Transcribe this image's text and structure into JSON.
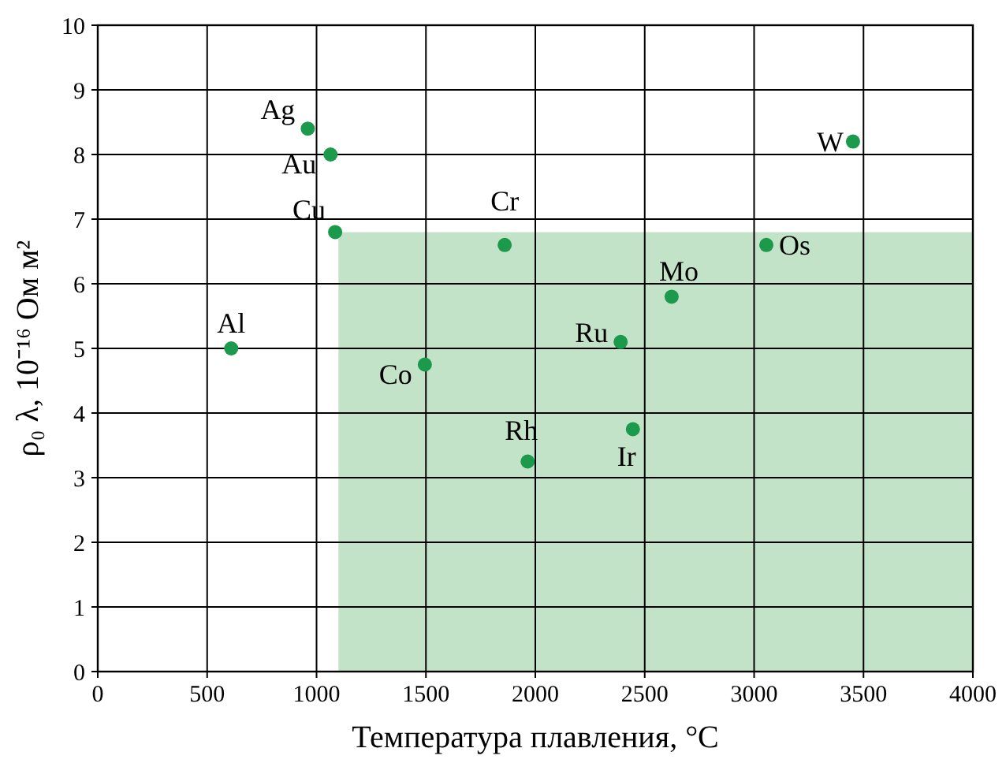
{
  "chart_data": {
    "type": "scatter",
    "xlabel": "Температура плавления, °C",
    "ylabel": "ρ₀ λ, 10⁻¹⁶ Ом м²",
    "xlim": [
      0,
      4000
    ],
    "xticks": [
      0,
      500,
      1000,
      1500,
      2000,
      2500,
      3000,
      3500,
      4000
    ],
    "ylim": [
      0,
      10
    ],
    "yticks": [
      0,
      1,
      2,
      3,
      4,
      5,
      6,
      7,
      8,
      9,
      10
    ],
    "grid": true,
    "series": [
      {
        "type": "area",
        "color": "#c3e3c8",
        "x": [
          1100,
          4000
        ],
        "values": [
          6.8,
          6.8
        ]
      },
      {
        "color": "#1a9a4a",
        "marker": "circle",
        "x": [
          960,
          1064,
          1085,
          610,
          1495,
          1860,
          1965,
          2390,
          2446,
          2623,
          3056,
          3452
        ],
        "values": [
          8.4,
          8.0,
          6.8,
          5.0,
          4.75,
          6.6,
          3.25,
          5.1,
          3.75,
          5.8,
          6.6,
          8.2
        ]
      }
    ],
    "annotations": [
      {
        "text": "Ag",
        "x": 960,
        "y": 8.4
      },
      {
        "text": "Au",
        "x": 1064,
        "y": 8.0
      },
      {
        "text": "Cu",
        "x": 1085,
        "y": 6.8
      },
      {
        "text": "Al",
        "x": 610,
        "y": 5.0
      },
      {
        "text": "Co",
        "x": 1495,
        "y": 4.75
      },
      {
        "text": "Cr",
        "x": 1860,
        "y": 6.6
      },
      {
        "text": "Rh",
        "x": 1965,
        "y": 3.25
      },
      {
        "text": "Ru",
        "x": 2390,
        "y": 5.1
      },
      {
        "text": "Ir",
        "x": 2446,
        "y": 3.75
      },
      {
        "text": "Mo",
        "x": 2623,
        "y": 5.8
      },
      {
        "text": "Os",
        "x": 3056,
        "y": 6.6
      },
      {
        "text": "W",
        "x": 3452,
        "y": 8.2
      }
    ]
  }
}
